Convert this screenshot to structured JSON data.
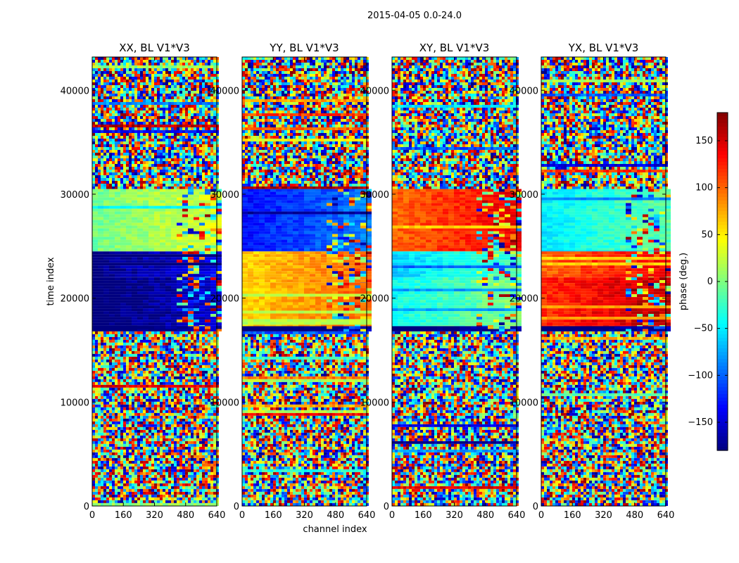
{
  "suptitle": "2015-04-05 0.0-24.0",
  "colors": {
    "jet": [
      "#00007f",
      "#0000ff",
      "#007fff",
      "#00ffff",
      "#7fff7f",
      "#ffff00",
      "#ff7f00",
      "#ff0000",
      "#7f0000"
    ],
    "axis": "#000000",
    "background": "#ffffff"
  },
  "chart_data": {
    "type": "heatmap",
    "shared_xlabel": "channel index",
    "shared_ylabel": "time index",
    "xlim": [
      0,
      640
    ],
    "ylim": [
      0,
      43200
    ],
    "xticks": [
      0,
      160,
      320,
      480,
      640
    ],
    "yticks": [
      0,
      10000,
      20000,
      30000,
      40000
    ],
    "panels": [
      {
        "title": "XX, BL V1*V3",
        "description_bands": [
          {
            "y_range": [
              0,
              16800
            ],
            "pattern": "noise"
          },
          {
            "y_range": [
              16800,
              17300
            ],
            "value": -180
          },
          {
            "y_range": [
              17300,
              22000
            ],
            "value": -170
          },
          {
            "y_range": [
              22000,
              24500
            ],
            "value": -160
          },
          {
            "y_range": [
              24500,
              30500
            ],
            "value": 15
          },
          {
            "y_range": [
              30500,
              43200
            ],
            "pattern": "noise"
          }
        ]
      },
      {
        "title": "YY, BL V1*V3",
        "description_bands": [
          {
            "y_range": [
              0,
              16800
            ],
            "pattern": "noise"
          },
          {
            "y_range": [
              16800,
              17300
            ],
            "value": -180
          },
          {
            "y_range": [
              17300,
              21500
            ],
            "value": 80
          },
          {
            "y_range": [
              21500,
              24500
            ],
            "value": 80
          },
          {
            "y_range": [
              24500,
              30500
            ],
            "value": -110
          },
          {
            "y_range": [
              30500,
              43200
            ],
            "pattern": "noise"
          }
        ]
      },
      {
        "title": "XY, BL V1*V3",
        "description_bands": [
          {
            "y_range": [
              0,
              16800
            ],
            "pattern": "noise"
          },
          {
            "y_range": [
              16800,
              17300
            ],
            "value": -180
          },
          {
            "y_range": [
              17300,
              22000
            ],
            "value": -20
          },
          {
            "y_range": [
              22000,
              24500
            ],
            "value": -40
          },
          {
            "y_range": [
              24500,
              30500
            ],
            "value": 120
          },
          {
            "y_range": [
              30500,
              43200
            ],
            "pattern": "noise"
          }
        ]
      },
      {
        "title": "YX, BL V1*V3",
        "description_bands": [
          {
            "y_range": [
              0,
              16800
            ],
            "pattern": "noise"
          },
          {
            "y_range": [
              16800,
              17300
            ],
            "value": -180
          },
          {
            "y_range": [
              17300,
              22000
            ],
            "value": 140
          },
          {
            "y_range": [
              22000,
              24500
            ],
            "value": 120
          },
          {
            "y_range": [
              24500,
              30500
            ],
            "value": -30
          },
          {
            "y_range": [
              30500,
              43200
            ],
            "pattern": "noise"
          }
        ]
      }
    ],
    "colorbar": {
      "label": "phase (deg.)",
      "range": [
        -180,
        180
      ],
      "ticks": [
        -150,
        -100,
        -50,
        0,
        50,
        100,
        150
      ],
      "tick_labels": [
        "−150",
        "−100",
        "−50",
        "0",
        "50",
        "100",
        "150"
      ],
      "colormap": "jet"
    }
  }
}
